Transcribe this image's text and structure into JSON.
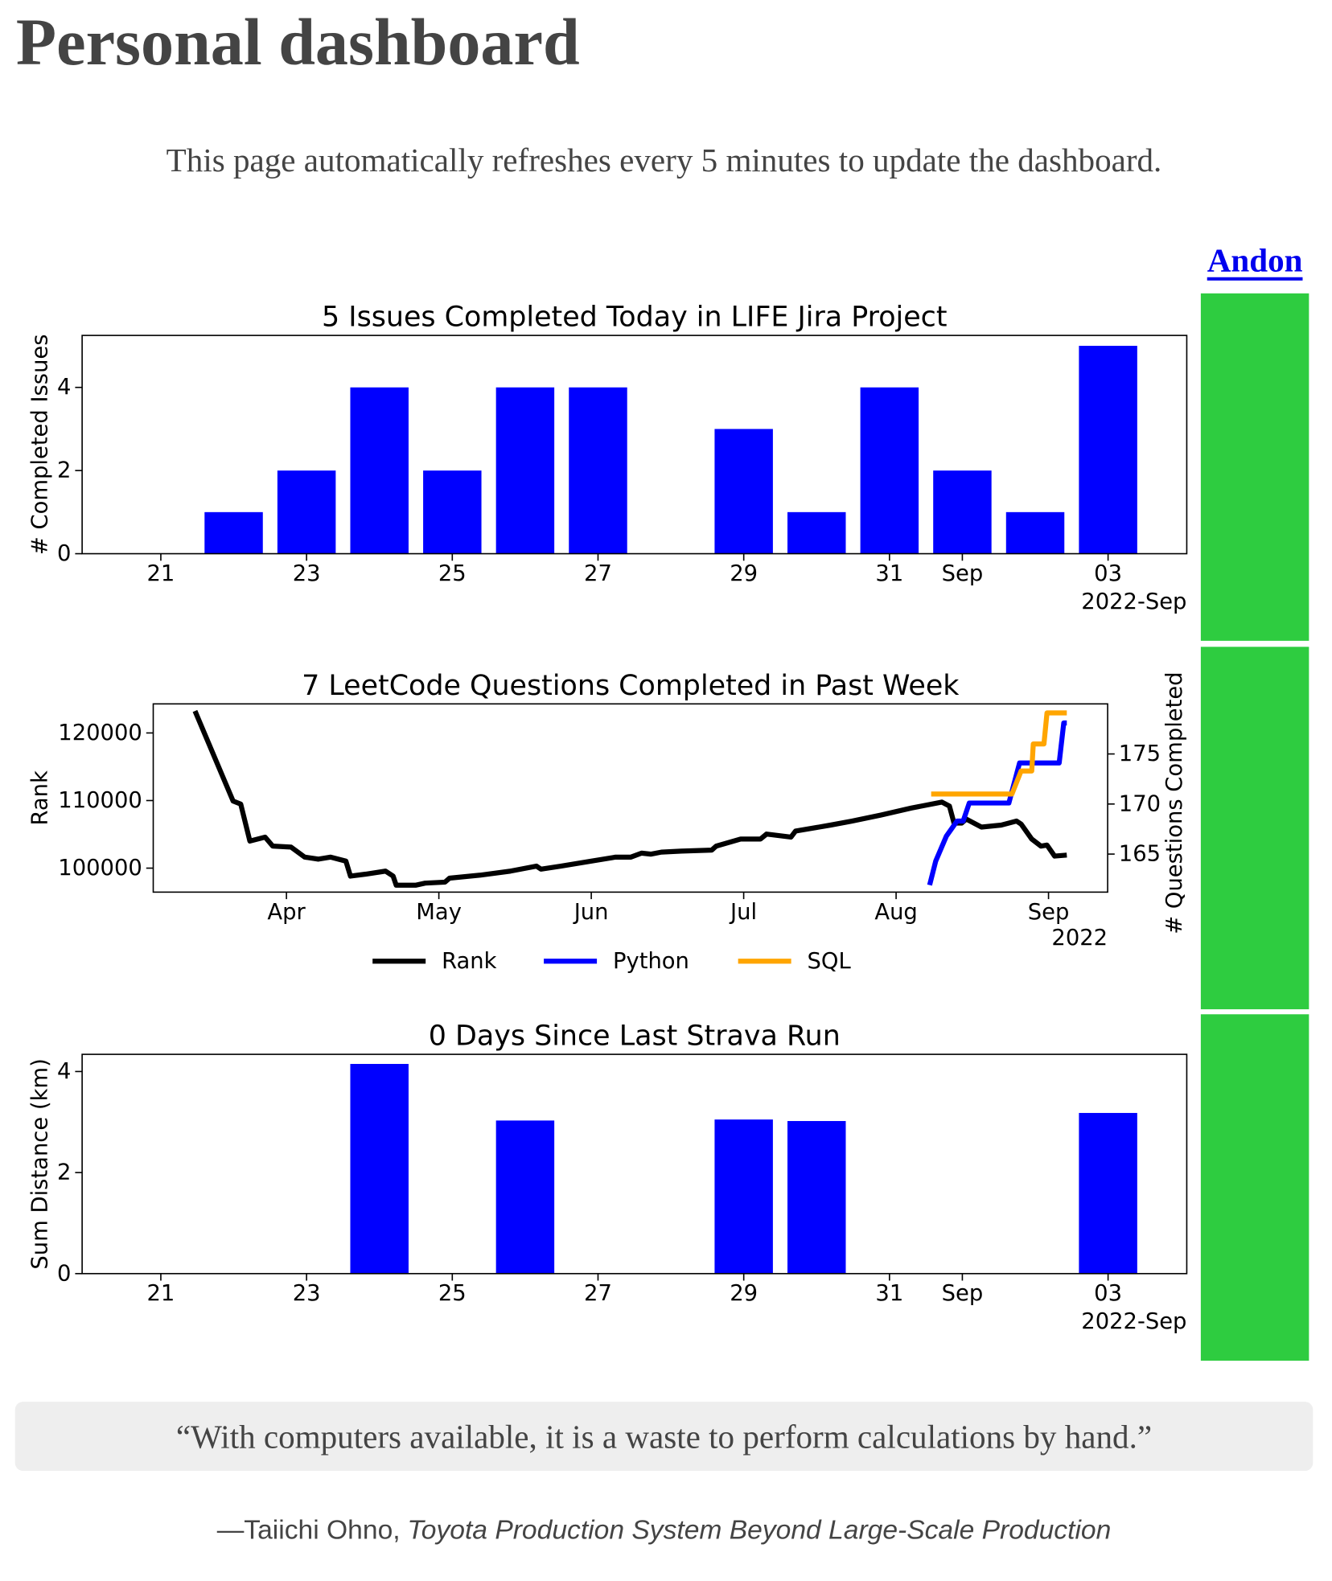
{
  "header": {
    "title": "Personal dashboard",
    "subtitle": "This page automatically refreshes every 5 minutes to update the dashboard."
  },
  "andon": {
    "label": "Andon"
  },
  "chart_data": [
    {
      "type": "bar",
      "title": "5 Issues Completed Today in LIFE Jira Project",
      "ylabel": "# Completed Issues",
      "x_offset_label": "2022-Sep",
      "categories": [
        "21",
        null,
        "23",
        null,
        "25",
        null,
        "27",
        null,
        "29",
        null,
        "31",
        "Sep",
        null,
        "03"
      ],
      "values": [
        0,
        1,
        2,
        4,
        2,
        4,
        4,
        0,
        3,
        1,
        4,
        2,
        1,
        5
      ],
      "color": "#0000ff",
      "ylim": [
        0,
        5.25
      ],
      "yticks": [
        0,
        2,
        4
      ]
    },
    {
      "type": "line",
      "title": "7 LeetCode Questions Completed in Past Week",
      "ylabel": "Rank",
      "y2label": "# Questions Completed",
      "x_offset_label": "2022",
      "xlim": [
        3.126,
        9.388
      ],
      "xticks": [
        {
          "value": 4,
          "label": "Apr"
        },
        {
          "value": 5,
          "label": "May"
        },
        {
          "value": 6,
          "label": "Jun"
        },
        {
          "value": 7,
          "label": "Jul"
        },
        {
          "value": 8,
          "label": "Aug"
        },
        {
          "value": 9,
          "label": "Sep"
        }
      ],
      "ylim": [
        96450,
        124300
      ],
      "yticks": [
        100000,
        110000,
        120000
      ],
      "y2lim": [
        161.2,
        180
      ],
      "y2ticks": [
        165,
        170,
        175
      ],
      "legend": "lower center",
      "series": [
        {
          "name": "Rank",
          "color": "#000000",
          "x": [
            3.4,
            3.65,
            3.7,
            3.76,
            3.86,
            3.91,
            4.03,
            4.12,
            4.21,
            4.29,
            4.39,
            4.42,
            4.52,
            4.65,
            4.7,
            4.72,
            4.85,
            4.91,
            5.04,
            5.07,
            5.27,
            5.47,
            5.64,
            5.67,
            5.8,
            6.0,
            6.16,
            6.26,
            6.33,
            6.39,
            6.46,
            6.59,
            6.79,
            6.82,
            6.98,
            7.11,
            7.15,
            7.31,
            7.34,
            7.57,
            7.71,
            7.9,
            8.1,
            8.3,
            8.35,
            8.38,
            8.43,
            8.46,
            8.56,
            8.69,
            8.79,
            8.82,
            8.89,
            8.95,
            8.99,
            9.04,
            9.12
          ],
          "values": [
            123250,
            109920,
            109480,
            104000,
            104590,
            103260,
            103110,
            101630,
            101330,
            101630,
            101040,
            98820,
            99110,
            99560,
            98820,
            97480,
            97480,
            97780,
            97930,
            98520,
            98960,
            99560,
            100300,
            99850,
            100300,
            101040,
            101630,
            101630,
            102220,
            102070,
            102370,
            102520,
            102670,
            103260,
            104300,
            104300,
            105040,
            104590,
            105480,
            106370,
            106960,
            107850,
            108890,
            109770,
            109180,
            106660,
            106660,
            107260,
            106070,
            106370,
            106960,
            106520,
            104300,
            103260,
            103410,
            101780,
            101930
          ]
        },
        {
          "name": "Python",
          "color": "#0000ff",
          "axis": "y2",
          "x": [
            8.22,
            8.26,
            8.33,
            8.4,
            8.44,
            8.48,
            8.74,
            8.81,
            9.07,
            9.1,
            9.12
          ],
          "values": [
            161.9,
            164.3,
            166.8,
            168.3,
            168.3,
            170.1,
            170.1,
            174.1,
            174.1,
            178.1,
            178.1
          ]
        },
        {
          "name": "SQL",
          "color": "#ffa500",
          "axis": "y2",
          "x": [
            8.23,
            8.76,
            8.82,
            8.89,
            8.9,
            8.97,
            8.99,
            9.12
          ],
          "values": [
            171,
            171,
            173.3,
            173.3,
            176,
            176,
            179.1,
            179.1
          ]
        }
      ]
    },
    {
      "type": "bar",
      "title": "0 Days Since Last Strava Run",
      "ylabel": "Sum Distance (km)",
      "x_offset_label": "2022-Sep",
      "categories": [
        "21",
        null,
        "23",
        null,
        "25",
        null,
        "27",
        null,
        "29",
        null,
        "31",
        "Sep",
        null,
        "03"
      ],
      "values": [
        0,
        0,
        0,
        4.15,
        0,
        3.03,
        0,
        0,
        3.05,
        3.02,
        0,
        0,
        0,
        3.18
      ],
      "color": "#0000ff",
      "ylim": [
        0,
        4.34
      ],
      "yticks": [
        0,
        2,
        4
      ]
    }
  ],
  "quote": {
    "text": "“With computers available, it is a waste to perform calculations by hand.”",
    "author": "—Taiichi Ohno,",
    "source": "Toyota Production System Beyond Large-Scale Production"
  }
}
